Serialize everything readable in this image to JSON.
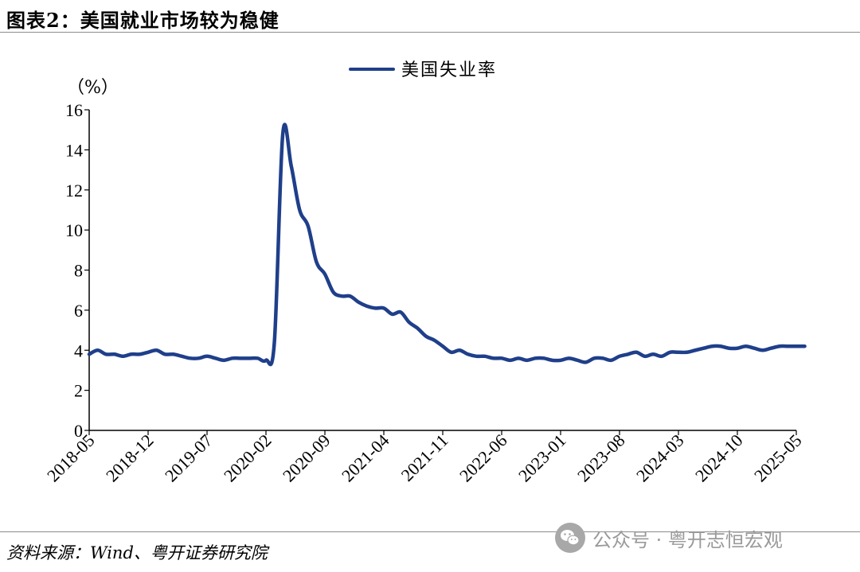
{
  "title": "图表2：美国就业市场较为稳健",
  "source": "资料来源：Wind、粤开证券研究院",
  "watermark": {
    "text": "公众号 · 粤开志恒宏观",
    "icon": "wechat-icon"
  },
  "colors": {
    "series": "#1f3f8a",
    "axis": "#000000",
    "watermark": "#9a9a9a",
    "rule": "#8c8c8c"
  },
  "chart_data": {
    "type": "line",
    "title": "",
    "xlabel": "",
    "ylabel": "",
    "y_unit": "（%）",
    "ylim": [
      0,
      16
    ],
    "y_ticks": [
      "0",
      "2",
      "4",
      "6",
      "8",
      "10",
      "12",
      "14",
      "16"
    ],
    "x_ticks": [
      "2018-05",
      "2018-12",
      "2019-07",
      "2020-02",
      "2020-09",
      "2021-04",
      "2021-11",
      "2022-06",
      "2023-01",
      "2023-08",
      "2024-03",
      "2024-10",
      "2025-05"
    ],
    "grid": false,
    "legend": "top-center",
    "x_start": "2018-05",
    "series": [
      {
        "name": "美国失业率",
        "values": [
          3.8,
          4.0,
          3.8,
          3.8,
          3.7,
          3.8,
          3.8,
          3.9,
          4.0,
          3.8,
          3.8,
          3.7,
          3.6,
          3.6,
          3.7,
          3.6,
          3.5,
          3.6,
          3.6,
          3.6,
          3.6,
          3.5,
          4.4,
          14.8,
          13.2,
          11.0,
          10.2,
          8.4,
          7.8,
          6.9,
          6.7,
          6.7,
          6.4,
          6.2,
          6.1,
          6.1,
          5.8,
          5.9,
          5.4,
          5.1,
          4.7,
          4.5,
          4.2,
          3.9,
          4.0,
          3.8,
          3.7,
          3.7,
          3.6,
          3.6,
          3.5,
          3.6,
          3.5,
          3.6,
          3.6,
          3.5,
          3.5,
          3.6,
          3.5,
          3.4,
          3.6,
          3.6,
          3.5,
          3.7,
          3.8,
          3.9,
          3.7,
          3.8,
          3.7,
          3.9,
          3.9,
          3.9,
          4.0,
          4.1,
          4.2,
          4.2,
          4.1,
          4.1,
          4.2,
          4.1,
          4.0,
          4.1,
          4.2,
          4.2,
          4.2,
          4.2
        ]
      }
    ]
  }
}
